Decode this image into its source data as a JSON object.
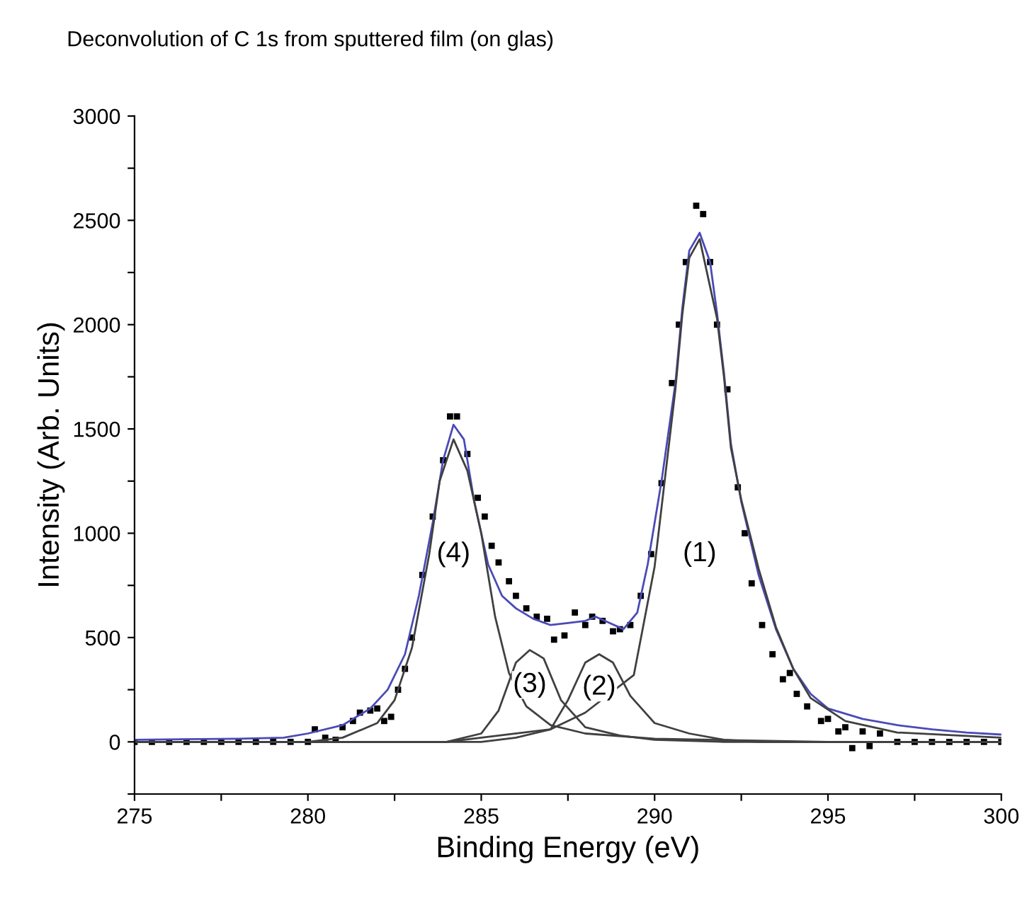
{
  "chart_data": {
    "type": "line",
    "title": "Deconvolution of C 1s from sputtered film (on glas)",
    "xlabel": "Binding Energy (eV)",
    "ylabel": "Intensity (Arb. Units)",
    "xlim": [
      275,
      300
    ],
    "ylim": [
      -250,
      3000
    ],
    "xticks": [
      275,
      {
        "value": 277.5,
        "label": null
      },
      280,
      {
        "value": 282.5,
        "label": null
      },
      285,
      {
        "value": 287.5,
        "label": null
      },
      290,
      {
        "value": 292.5,
        "label": null
      },
      295,
      {
        "value": 297.5,
        "label": null
      },
      300
    ],
    "yticks": [
      {
        "value": -250,
        "label": null
      },
      0,
      {
        "value": 250,
        "label": null
      },
      500,
      {
        "value": 750,
        "label": null
      },
      1000,
      {
        "value": 1250,
        "label": null
      },
      1500,
      {
        "value": 1750,
        "label": null
      },
      2000,
      {
        "value": 2250,
        "label": null
      },
      2500,
      {
        "value": 2750,
        "label": null
      },
      3000
    ],
    "grid": false,
    "legend": false,
    "series": [
      {
        "type": "scatter",
        "color": "#000000",
        "marker": "square",
        "x": [
          275,
          275.5,
          276,
          276.5,
          277,
          277.5,
          278,
          278.5,
          279,
          279.5,
          280,
          280.2,
          280.5,
          280.8,
          281,
          281.3,
          281.5,
          281.8,
          282,
          282.2,
          282.4,
          282.6,
          282.8,
          283,
          283.3,
          283.6,
          283.9,
          284.1,
          284.3,
          284.6,
          284.9,
          285.1,
          285.3,
          285.5,
          285.8,
          286,
          286.3,
          286.6,
          286.9,
          287.1,
          287.4,
          287.7,
          288,
          288.2,
          288.5,
          288.8,
          289,
          289.3,
          289.6,
          289.9,
          290.2,
          290.5,
          290.7,
          290.9,
          291.2,
          291.4,
          291.6,
          291.8,
          292.1,
          292.4,
          292.6,
          292.8,
          293.1,
          293.4,
          293.7,
          293.9,
          294.1,
          294.4,
          294.8,
          295,
          295.3,
          295.5,
          295.7,
          296,
          296.2,
          296.5,
          297,
          297.5,
          298,
          298.5,
          299,
          299.5,
          300
        ],
        "values": [
          0,
          0,
          0,
          0,
          0,
          0,
          0,
          0,
          0,
          0,
          0,
          60,
          20,
          10,
          70,
          100,
          140,
          150,
          160,
          100,
          120,
          250,
          350,
          500,
          800,
          1080,
          1350,
          1560,
          1560,
          1380,
          1170,
          1080,
          940,
          860,
          770,
          700,
          640,
          600,
          590,
          490,
          510,
          620,
          560,
          600,
          580,
          530,
          540,
          560,
          700,
          900,
          1240,
          1720,
          2000,
          2300,
          2570,
          2530,
          2300,
          2000,
          1690,
          1220,
          1000,
          760,
          560,
          420,
          300,
          330,
          230,
          170,
          100,
          110,
          50,
          70,
          -30,
          50,
          -20,
          40,
          0,
          0,
          0,
          0,
          0,
          0,
          0
        ]
      },
      {
        "color": "#4a4ab8",
        "x": [
          275,
          278,
          279.3,
          280,
          281,
          281.8,
          282.3,
          282.8,
          283.2,
          283.6,
          283.9,
          284.2,
          284.5,
          284.8,
          285.2,
          285.6,
          286,
          286.5,
          287,
          287.5,
          288,
          288.3,
          288.7,
          289.1,
          289.5,
          289.8,
          290.2,
          290.6,
          290.8,
          291,
          291.3,
          291.6,
          291.8,
          292,
          292.2,
          292.5,
          293,
          293.5,
          294,
          294.5,
          295,
          296,
          297,
          298,
          299,
          300
        ],
        "values": [
          10,
          15,
          20,
          40,
          80,
          160,
          250,
          420,
          700,
          1050,
          1350,
          1520,
          1450,
          1150,
          850,
          700,
          640,
          590,
          560,
          570,
          580,
          600,
          570,
          540,
          620,
          850,
          1250,
          1720,
          2080,
          2355,
          2440,
          2300,
          2055,
          1770,
          1430,
          1150,
          800,
          540,
          350,
          230,
          160,
          110,
          80,
          60,
          45,
          35
        ]
      },
      {
        "type": "line",
        "color": "#404040",
        "x": [
          275,
          280,
          281,
          282,
          282.5,
          283,
          283.5,
          283.8,
          284.2,
          284.6,
          285,
          285.4,
          285.8,
          286.3,
          287,
          288,
          290,
          295,
          300
        ],
        "values": [
          0,
          0,
          20,
          90,
          200,
          450,
          900,
          1250,
          1450,
          1300,
          1000,
          600,
          330,
          170,
          80,
          40,
          15,
          0,
          0
        ]
      },
      {
        "type": "line",
        "color": "#404040",
        "x": [
          275,
          284,
          285,
          285.5,
          286,
          286.4,
          286.8,
          287.3,
          288,
          289,
          290,
          292,
          300
        ],
        "values": [
          0,
          0,
          40,
          150,
          380,
          440,
          400,
          200,
          70,
          30,
          10,
          0,
          0
        ]
      },
      {
        "type": "line",
        "color": "#404040",
        "x": [
          275,
          285,
          286,
          287,
          287.5,
          288,
          288.4,
          288.8,
          289.3,
          290,
          291,
          292,
          293,
          300
        ],
        "values": [
          0,
          0,
          20,
          60,
          200,
          380,
          420,
          380,
          220,
          90,
          40,
          10,
          0,
          0
        ]
      },
      {
        "type": "line",
        "color": "#404040",
        "x": [
          275,
          284,
          285,
          287,
          288,
          289.4,
          290,
          290.6,
          290.8,
          291,
          291.3,
          291.8,
          292,
          292.2,
          292.5,
          293,
          293.5,
          294,
          294.5,
          295.5,
          297,
          300
        ],
        "values": [
          0,
          0,
          20,
          60,
          140,
          320,
          840,
          1690,
          2050,
          2320,
          2410,
          2030,
          1750,
          1410,
          1160,
          830,
          550,
          350,
          210,
          100,
          45,
          20
        ]
      }
    ],
    "annotations": [
      "(1)",
      "(2)",
      "(3)",
      "(4)"
    ]
  }
}
